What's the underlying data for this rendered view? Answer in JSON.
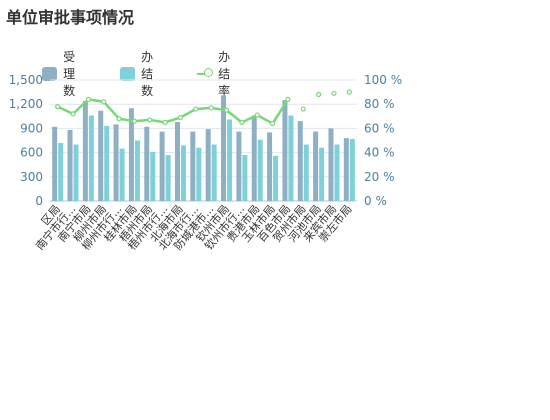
{
  "page": {
    "title": "单位审批事项情况"
  },
  "legend": {
    "accepted": "受理数",
    "completed": "办结数",
    "rate": "办结率"
  },
  "colors": {
    "accepted": "#8fafc3",
    "completed": "#7fd1d9",
    "rate": "#78d778",
    "axis_text": "#4d7fa0",
    "grid": "#e0e6ee"
  },
  "chart_data": {
    "type": "bar",
    "title": "单位审批事项情况",
    "categories": [
      "区局",
      "南宁市行...",
      "南宁市局",
      "柳州市局",
      "柳州市行...",
      "桂林市局",
      "梧州市局",
      "梧州市行...",
      "北海市局",
      "北海市行...",
      "防城港市...",
      "钦州市局",
      "钦州市行...",
      "贵港市局",
      "玉林市局",
      "百色市局",
      "贺州市局",
      "河池市局",
      "来宾市局",
      "崇左市局"
    ],
    "series": [
      {
        "name": "受理数",
        "type": "bar",
        "axis": "left",
        "values": [
          920,
          880,
          1240,
          1120,
          950,
          1150,
          920,
          860,
          980,
          860,
          890,
          1310,
          860,
          1060,
          850,
          1250,
          990,
          860,
          900,
          780
        ]
      },
      {
        "name": "办结数",
        "type": "bar",
        "axis": "left",
        "values": [
          720,
          700,
          1060,
          930,
          650,
          750,
          610,
          570,
          690,
          660,
          700,
          1010,
          570,
          760,
          560,
          1060,
          700,
          660,
          700,
          770
        ]
      },
      {
        "name": "办结率",
        "type": "line",
        "axis": "right",
        "values": [
          78,
          72,
          84,
          82,
          68,
          66,
          67,
          65,
          69,
          76,
          77,
          75,
          65,
          71,
          64,
          84,
          76,
          88,
          89,
          90
        ],
        "connected_count": 16
      }
    ],
    "y_left": {
      "ticks": [
        "0",
        "300",
        "600",
        "900",
        "1,200",
        "1,500"
      ],
      "range": [
        0,
        1500
      ]
    },
    "y_right": {
      "ticks": [
        "0 %",
        "20 %",
        "40 %",
        "60 %",
        "80 %",
        "100 %"
      ],
      "range": [
        0,
        100
      ]
    },
    "grid": true,
    "legend_position": "top-left"
  }
}
